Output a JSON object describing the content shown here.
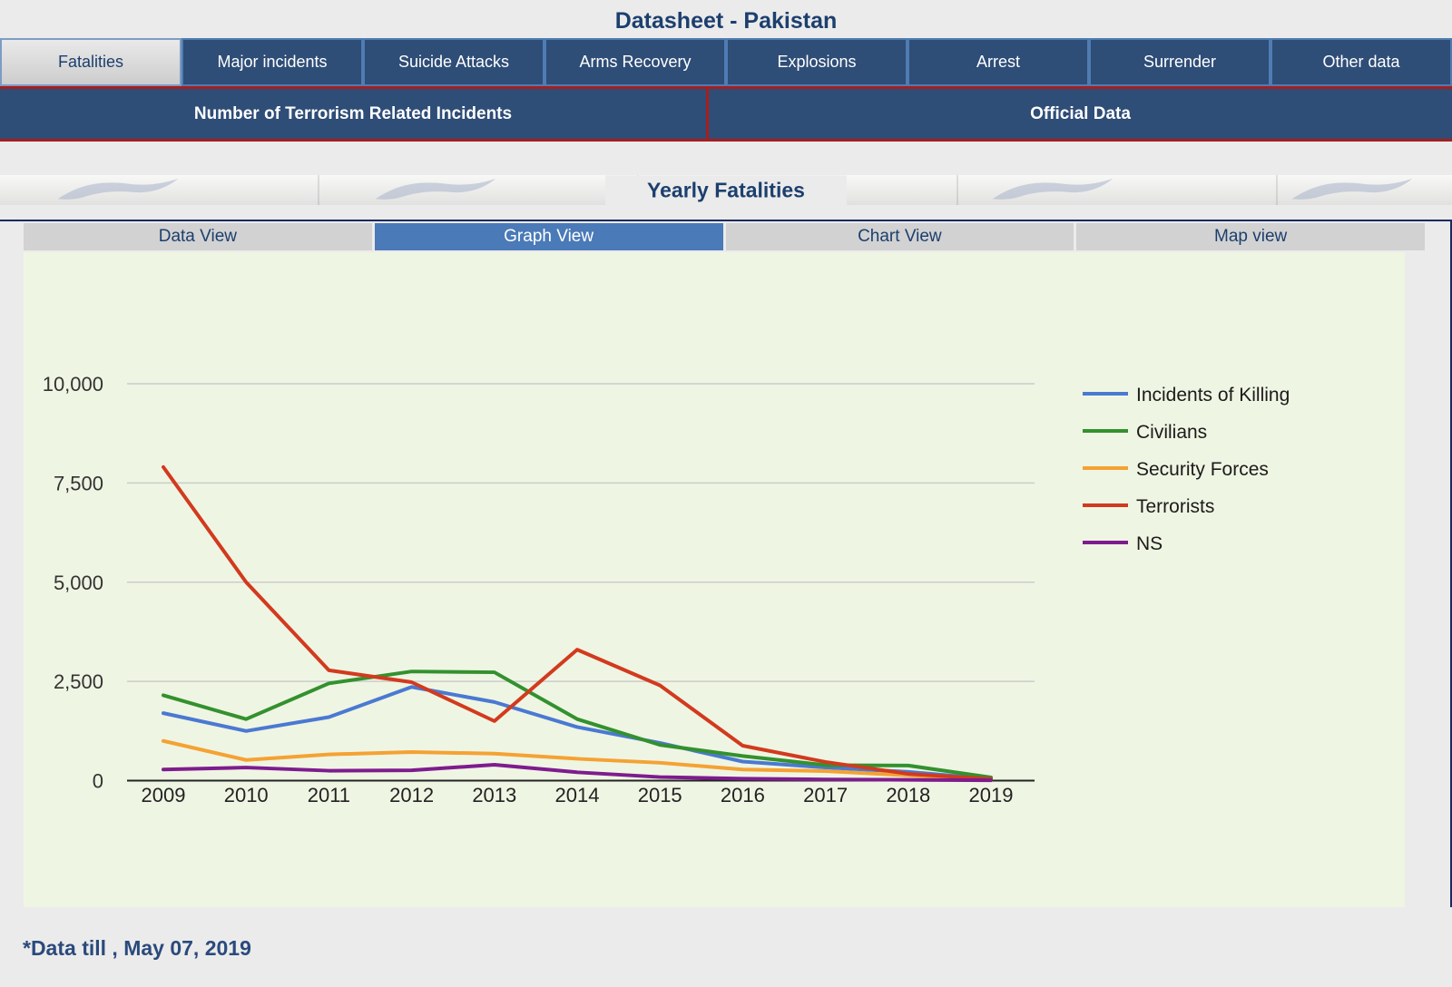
{
  "header": {
    "title": "Datasheet - Pakistan"
  },
  "main_tabs": {
    "items": [
      {
        "label": "Fatalities",
        "active": true
      },
      {
        "label": "Major incidents",
        "active": false
      },
      {
        "label": "Suicide Attacks",
        "active": false
      },
      {
        "label": "Arms Recovery",
        "active": false
      },
      {
        "label": "Explosions",
        "active": false
      },
      {
        "label": "Arrest",
        "active": false
      },
      {
        "label": "Surrender",
        "active": false
      },
      {
        "label": "Other data",
        "active": false
      }
    ]
  },
  "sub_header": {
    "left": "Number of Terrorism Related Incidents",
    "right": "Official Data"
  },
  "section": {
    "title": "Yearly Fatalities"
  },
  "view_tabs": {
    "items": [
      {
        "label": "Data View",
        "active": false
      },
      {
        "label": "Graph View",
        "active": true
      },
      {
        "label": "Chart View",
        "active": false
      },
      {
        "label": "Map view",
        "active": false
      }
    ]
  },
  "chart_data": {
    "type": "line",
    "title": "Yearly Fatalities",
    "categories": [
      "2009",
      "2010",
      "2011",
      "2012",
      "2013",
      "2014",
      "2015",
      "2016",
      "2017",
      "2018",
      "2019"
    ],
    "series": [
      {
        "name": "Incidents of Killing",
        "color": "#4a79d2",
        "values": [
          1700,
          1250,
          1600,
          2360,
          1980,
          1350,
          950,
          480,
          330,
          220,
          40
        ]
      },
      {
        "name": "Civilians",
        "color": "#33912e",
        "values": [
          2150,
          1550,
          2450,
          2750,
          2730,
          1550,
          900,
          620,
          390,
          380,
          80
        ]
      },
      {
        "name": "Security Forces",
        "color": "#f5a233",
        "values": [
          1000,
          520,
          660,
          720,
          680,
          550,
          450,
          280,
          240,
          130,
          20
        ]
      },
      {
        "name": "Terrorists",
        "color": "#d23a1e",
        "values": [
          7900,
          5000,
          2780,
          2480,
          1500,
          3300,
          2400,
          880,
          470,
          170,
          40
        ]
      },
      {
        "name": "NS",
        "color": "#7e1c8e",
        "values": [
          280,
          330,
          250,
          260,
          400,
          210,
          90,
          50,
          30,
          20,
          10
        ]
      }
    ],
    "yticks": [
      {
        "value": 0,
        "label": "0"
      },
      {
        "value": 2500,
        "label": "2,500"
      },
      {
        "value": 5000,
        "label": "5,000"
      },
      {
        "value": 7500,
        "label": "7,500"
      },
      {
        "value": 10000,
        "label": "10,000"
      }
    ],
    "ylim": [
      0,
      10500
    ],
    "xlabel": "",
    "ylabel": "",
    "grid": true,
    "legend_position": "right",
    "plot_bg": "#eff5e3"
  },
  "footer": {
    "note": "*Data till , May 07, 2019"
  },
  "colors": {
    "navy_text": "#1c3f6e",
    "tab_blue": "#2e4d77",
    "tab_border_blue": "#4f7cb3",
    "red_border": "#a61e1e",
    "active_view_tab_blue": "#4a7ab8",
    "panel_green": "#eff5e3",
    "grid_gray": "#cccccc"
  }
}
